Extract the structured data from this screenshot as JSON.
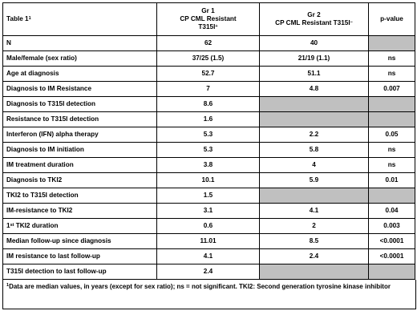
{
  "header": {
    "label": "Table 1",
    "label_sup": "1",
    "gr1_line1": "Gr 1",
    "gr1_line2": "CP CML Resistant",
    "gr1_line3": "T315I",
    "gr1_sup": "+",
    "gr2_line1": "Gr 2",
    "gr2_line2": "CP CML Resistant T315I",
    "gr2_sup": "−",
    "pvalue": "p-value"
  },
  "rows": [
    {
      "label": "N",
      "gr1": "62",
      "gr2": "40",
      "p": "",
      "p_gray": true
    },
    {
      "label": "Male/female (sex ratio)",
      "gr1": "37/25 (1.5)",
      "gr2": "21/19 (1.1)",
      "p": "ns"
    },
    {
      "label": "Age at diagnosis",
      "gr1": "52.7",
      "gr2": "51.1",
      "p": "ns"
    },
    {
      "label": "Diagnosis to IM Resistance",
      "gr1": "7",
      "gr2": "4.8",
      "p": "0.007"
    },
    {
      "label": "Diagnosis to T315I detection",
      "gr1": "8.6",
      "gr2": "",
      "p": "",
      "gr2_gray": true,
      "p_gray": true
    },
    {
      "label": "Resistance to T315I detection",
      "gr1": "1.6",
      "gr2": "",
      "p": "",
      "gr2_gray": true,
      "p_gray": true
    },
    {
      "label": "Interferon (IFN) alpha therapy",
      "gr1": "5.3",
      "gr2": "2.2",
      "p": "0.05"
    },
    {
      "label": "Diagnosis to IM initiation",
      "gr1": "5.3",
      "gr2": "5.8",
      "p": "ns"
    },
    {
      "label": "IM treatment duration",
      "gr1": "3.8",
      "gr2": "4",
      "p": "ns"
    },
    {
      "label": "Diagnosis to TKI2",
      "gr1": "10.1",
      "gr2": "5.9",
      "p": "0.01"
    },
    {
      "label": "TKI2 to T315I detection",
      "gr1": "1.5",
      "gr2": "",
      "p": "",
      "gr2_gray": true,
      "p_gray": true
    },
    {
      "label": "IM-resistance to TKI2",
      "gr1": "3.1",
      "gr2": "4.1",
      "p": "0.04"
    },
    {
      "label": "1st TKI2 duration",
      "label_pre": "1",
      "label_sup": "st",
      "label_post": " TKI2 duration",
      "gr1": "0.6",
      "gr2": "2",
      "p": "0.003"
    },
    {
      "label": "Median follow-up since diagnosis",
      "gr1": "11.01",
      "gr2": "8.5",
      "p": "<0.0001"
    },
    {
      "label": "IM resistance to last follow-up",
      "gr1": "4.1",
      "gr2": "2.4",
      "p": "<0.0001"
    },
    {
      "label": "T315I detection to last follow-up",
      "gr1": "2.4",
      "gr2": "",
      "p": "",
      "gr2_gray": true,
      "p_gray": true
    }
  ],
  "footnote": {
    "sup": "1",
    "text": "Data are median values, in years (except for sex ratio); ns = not significant. TKI2: Second generation tyrosine kinase inhibitor"
  }
}
